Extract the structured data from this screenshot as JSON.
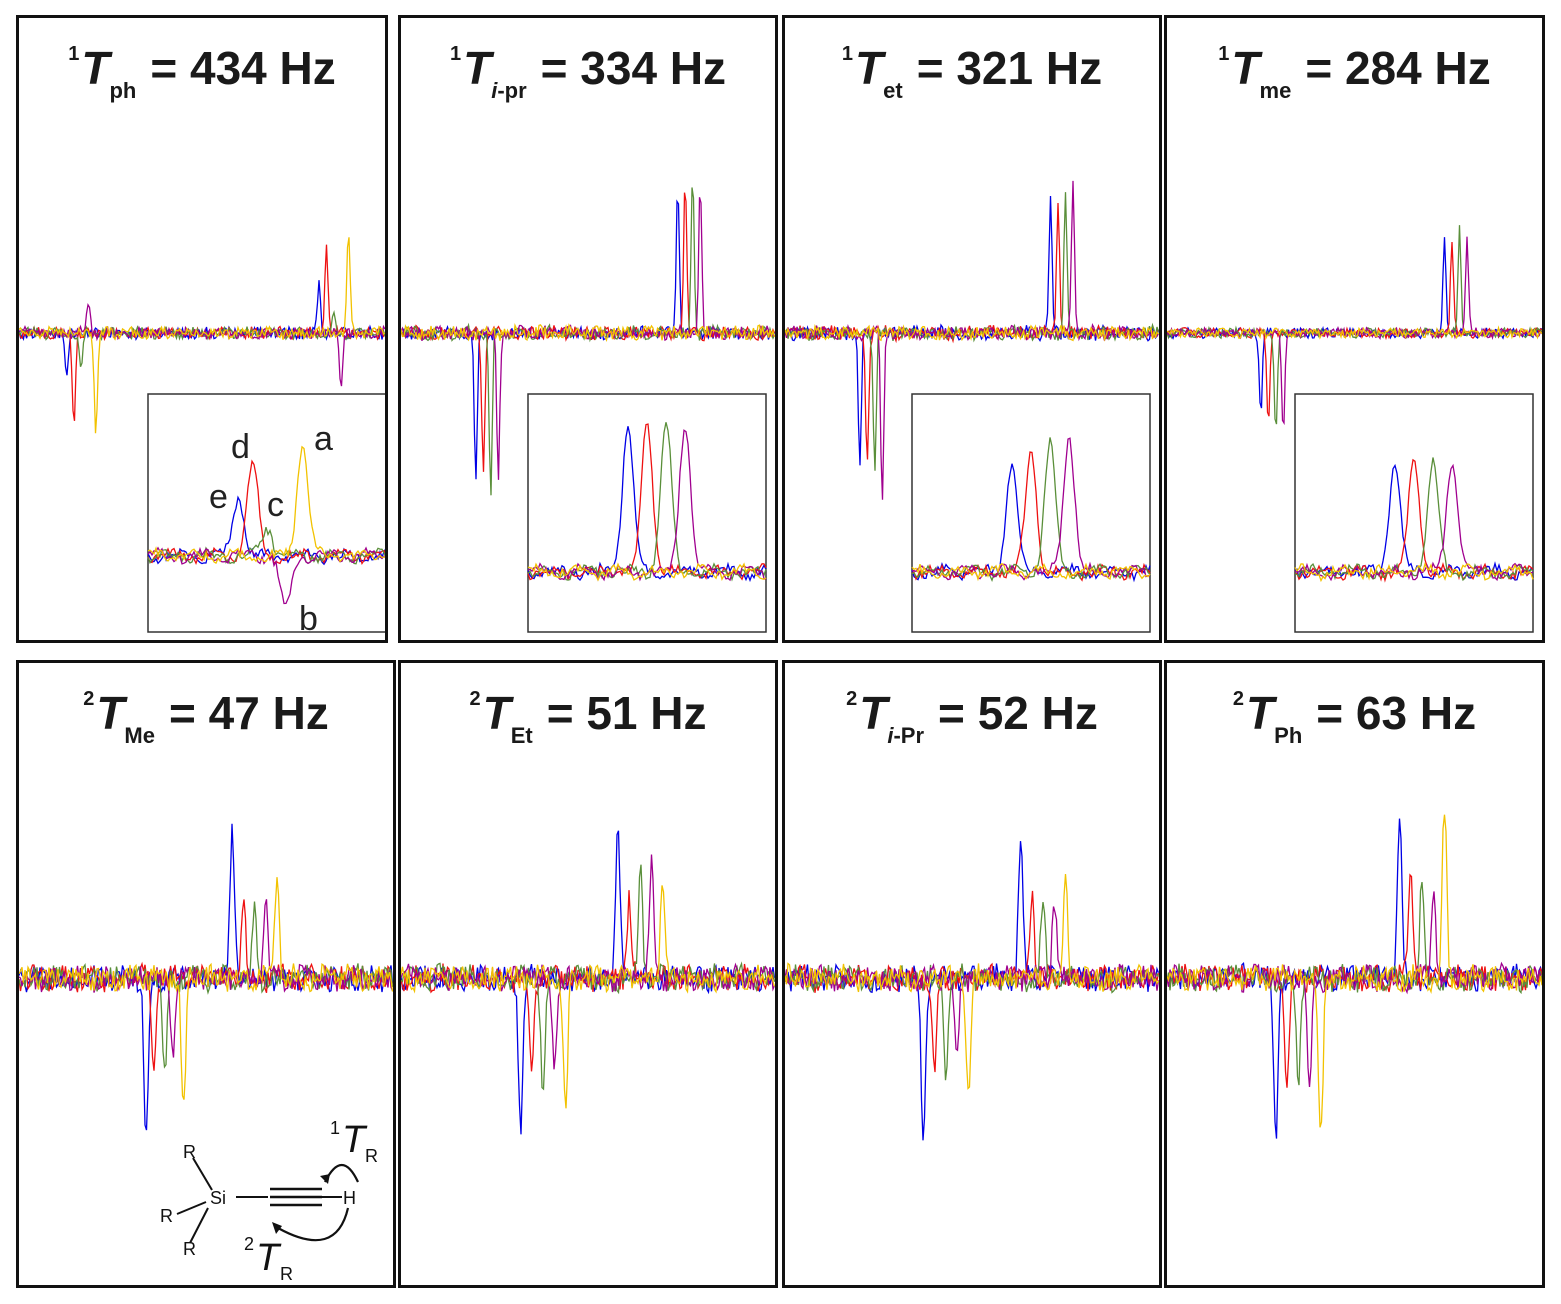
{
  "colors": {
    "blue": "#0000e6",
    "red": "#ee1111",
    "green": "#5a8f3a",
    "purple": "#a0008f",
    "yellow": "#f2c200"
  },
  "series_order": [
    "blue",
    "red",
    "green",
    "purple",
    "yellow"
  ],
  "panels": [
    {
      "id": "p1",
      "sup": "1",
      "sym": "T",
      "sub": "ph",
      "sub_italic": "",
      "value": "= 434 Hz"
    },
    {
      "id": "p2",
      "sup": "1",
      "sym": "T",
      "sub": "-pr",
      "sub_italic": "i",
      "value": "= 334 Hz"
    },
    {
      "id": "p3",
      "sup": "1",
      "sym": "T",
      "sub": "et",
      "sub_italic": "",
      "value": "= 321 Hz"
    },
    {
      "id": "p4",
      "sup": "1",
      "sym": "T",
      "sub": "me",
      "sub_italic": "",
      "value": "= 284 Hz"
    },
    {
      "id": "p5",
      "sup": "2",
      "sym": "T",
      "sub": "Me",
      "sub_italic": "",
      "value": "= 47 Hz"
    },
    {
      "id": "p6",
      "sup": "2",
      "sym": "T",
      "sub": "Et",
      "sub_italic": "",
      "value": "= 51 Hz"
    },
    {
      "id": "p7",
      "sup": "2",
      "sym": "T",
      "sub": "-Pr",
      "sub_italic": "i",
      "value": "= 52 Hz"
    },
    {
      "id": "p8",
      "sup": "2",
      "sym": "T",
      "sub": "Ph",
      "sub_italic": "",
      "value": "= 63 Hz"
    }
  ],
  "inset_labels": {
    "a": "a",
    "b": "b",
    "c": "c",
    "d": "d",
    "e": "e"
  },
  "molecule": {
    "si": "Si",
    "r": "R",
    "h": "H",
    "label1_sup": "1",
    "label1_sym": "T",
    "label1_sub": "R",
    "label2_sup": "2",
    "label2_sym": "T",
    "label2_sub": "R"
  },
  "chart_data": [
    {
      "type": "line",
      "title": "1Tph = 434 Hz",
      "series_colors": [
        "blue",
        "red",
        "green",
        "purple",
        "yellow"
      ],
      "peaks": {
        "blue": [
          {
            "x": 0.13,
            "y": -0.45
          },
          {
            "x": 0.82,
            "y": 0.45
          }
        ],
        "red": [
          {
            "x": 0.15,
            "y": -0.85
          },
          {
            "x": 0.84,
            "y": 0.8
          }
        ],
        "green": [
          {
            "x": 0.17,
            "y": -0.35
          },
          {
            "x": 0.86,
            "y": 0.2
          }
        ],
        "purple": [
          {
            "x": 0.19,
            "y": 0.3
          },
          {
            "x": 0.88,
            "y": -0.45
          }
        ],
        "yellow": [
          {
            "x": 0.21,
            "y": -0.9
          },
          {
            "x": 0.9,
            "y": 0.9
          }
        ]
      }
    },
    {
      "type": "line",
      "title": "1Ti-pr = 334 Hz",
      "series_colors": [
        "blue",
        "red",
        "green",
        "purple",
        "yellow"
      ],
      "peaks": {
        "blue": [
          {
            "x": 0.2,
            "y": -1.4
          },
          {
            "x": 0.74,
            "y": 1.4
          }
        ],
        "red": [
          {
            "x": 0.22,
            "y": -1.3
          },
          {
            "x": 0.76,
            "y": 1.4
          }
        ],
        "green": [
          {
            "x": 0.24,
            "y": -1.5
          },
          {
            "x": 0.78,
            "y": 1.45
          }
        ],
        "purple": [
          {
            "x": 0.26,
            "y": -1.3
          },
          {
            "x": 0.8,
            "y": 1.4
          }
        ]
      }
    },
    {
      "type": "line",
      "title": "1Tet = 321 Hz",
      "series_colors": [
        "blue",
        "red",
        "green",
        "purple",
        "yellow"
      ],
      "peaks": {
        "blue": [
          {
            "x": 0.2,
            "y": -1.2
          },
          {
            "x": 0.71,
            "y": 1.2
          }
        ],
        "red": [
          {
            "x": 0.22,
            "y": -1.2
          },
          {
            "x": 0.73,
            "y": 1.2
          }
        ],
        "green": [
          {
            "x": 0.24,
            "y": -1.3
          },
          {
            "x": 0.75,
            "y": 1.3
          }
        ],
        "purple": [
          {
            "x": 0.26,
            "y": -1.5
          },
          {
            "x": 0.77,
            "y": 1.4
          }
        ]
      }
    },
    {
      "type": "line",
      "title": "1Tme = 284 Hz",
      "series_colors": [
        "blue",
        "red",
        "green",
        "purple",
        "yellow"
      ],
      "peaks": {
        "blue": [
          {
            "x": 0.25,
            "y": -0.75
          },
          {
            "x": 0.74,
            "y": 0.85
          }
        ],
        "red": [
          {
            "x": 0.27,
            "y": -0.85
          },
          {
            "x": 0.76,
            "y": 0.85
          }
        ],
        "green": [
          {
            "x": 0.29,
            "y": -0.9
          },
          {
            "x": 0.78,
            "y": 0.95
          }
        ],
        "purple": [
          {
            "x": 0.31,
            "y": -0.9
          },
          {
            "x": 0.8,
            "y": 0.85
          }
        ]
      }
    },
    {
      "type": "line",
      "title": "2TMe = 47 Hz",
      "series_colors": [
        "blue",
        "red",
        "green",
        "purple",
        "yellow"
      ],
      "peaks": {
        "blue": [
          {
            "x": 0.34,
            "y": -1.45
          },
          {
            "x": 0.57,
            "y": 1.3
          }
        ],
        "red": [
          {
            "x": 0.36,
            "y": -0.8
          },
          {
            "x": 0.6,
            "y": 0.75
          }
        ],
        "green": [
          {
            "x": 0.39,
            "y": -0.9
          },
          {
            "x": 0.63,
            "y": 0.6
          }
        ],
        "purple": [
          {
            "x": 0.41,
            "y": -0.7
          },
          {
            "x": 0.66,
            "y": 0.7
          }
        ],
        "yellow": [
          {
            "x": 0.44,
            "y": -1.2
          },
          {
            "x": 0.69,
            "y": 1.0
          }
        ]
      }
    },
    {
      "type": "line",
      "title": "2TEt = 51 Hz",
      "series_colors": [
        "blue",
        "red",
        "green",
        "purple",
        "yellow"
      ],
      "peaks": {
        "blue": [
          {
            "x": 0.32,
            "y": -1.35
          },
          {
            "x": 0.58,
            "y": 1.35
          }
        ],
        "red": [
          {
            "x": 0.35,
            "y": -0.8
          },
          {
            "x": 0.61,
            "y": 0.7
          }
        ],
        "green": [
          {
            "x": 0.38,
            "y": -1.05
          },
          {
            "x": 0.64,
            "y": 1.0
          }
        ],
        "purple": [
          {
            "x": 0.41,
            "y": -0.75
          },
          {
            "x": 0.67,
            "y": 1.0
          }
        ],
        "yellow": [
          {
            "x": 0.44,
            "y": -1.2
          },
          {
            "x": 0.7,
            "y": 0.95
          }
        ]
      }
    },
    {
      "type": "line",
      "title": "2Ti-Pr = 52 Hz",
      "series_colors": [
        "blue",
        "red",
        "green",
        "purple",
        "yellow"
      ],
      "peaks": {
        "blue": [
          {
            "x": 0.37,
            "y": -1.5
          },
          {
            "x": 0.63,
            "y": 1.2
          }
        ],
        "red": [
          {
            "x": 0.4,
            "y": -0.8
          },
          {
            "x": 0.66,
            "y": 0.8
          }
        ],
        "green": [
          {
            "x": 0.43,
            "y": -0.9
          },
          {
            "x": 0.69,
            "y": 0.7
          }
        ],
        "purple": [
          {
            "x": 0.46,
            "y": -0.75
          },
          {
            "x": 0.72,
            "y": 0.75
          }
        ],
        "yellow": [
          {
            "x": 0.49,
            "y": -1.05
          },
          {
            "x": 0.75,
            "y": 0.9
          }
        ]
      }
    },
    {
      "type": "line",
      "title": "2TPh = 63 Hz",
      "series_colors": [
        "blue",
        "red",
        "green",
        "purple",
        "yellow"
      ],
      "peaks": {
        "blue": [
          {
            "x": 0.29,
            "y": -1.5
          },
          {
            "x": 0.62,
            "y": 1.5
          }
        ],
        "red": [
          {
            "x": 0.32,
            "y": -1.05
          },
          {
            "x": 0.65,
            "y": 0.95
          }
        ],
        "green": [
          {
            "x": 0.35,
            "y": -0.9
          },
          {
            "x": 0.68,
            "y": 0.85
          }
        ],
        "purple": [
          {
            "x": 0.38,
            "y": -1.05
          },
          {
            "x": 0.71,
            "y": 0.85
          }
        ],
        "yellow": [
          {
            "x": 0.41,
            "y": -1.45
          },
          {
            "x": 0.74,
            "y": 1.55
          }
        ]
      }
    }
  ]
}
